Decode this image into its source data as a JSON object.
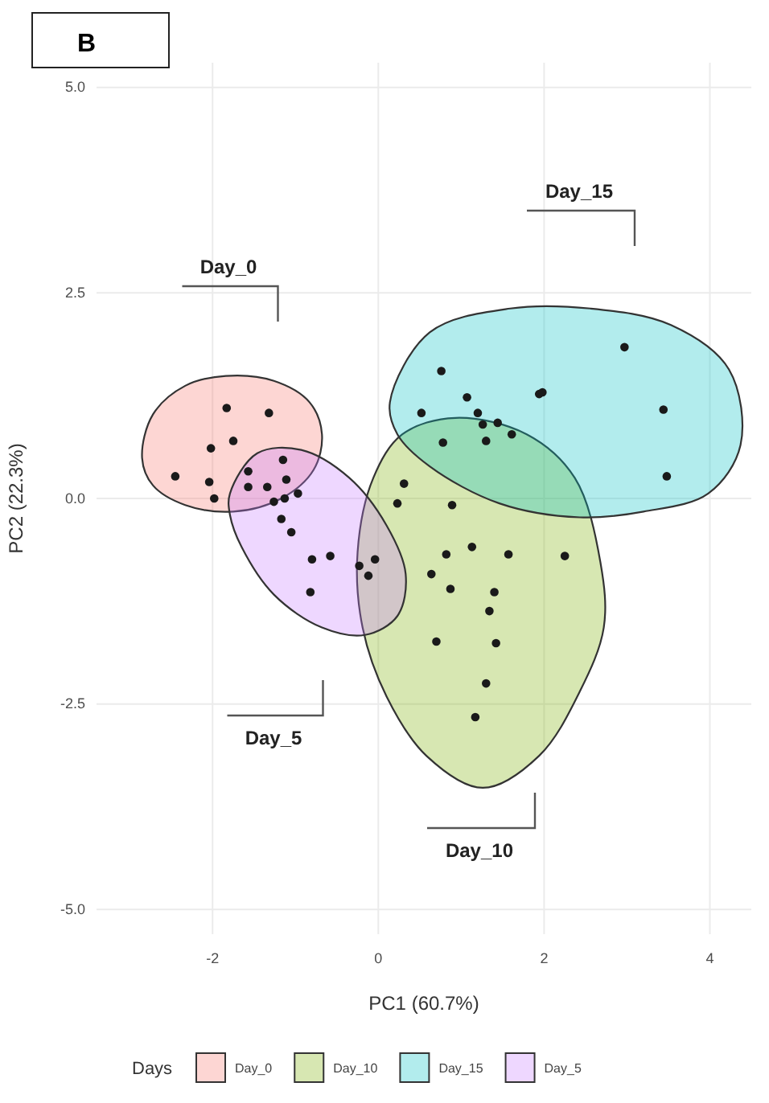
{
  "chart_data": {
    "type": "scatter",
    "title": "B",
    "xlabel": "PC1 (60.7%)",
    "ylabel": "PC2 (22.3%)",
    "legend_title": "Days",
    "xlim": [
      -3.4,
      4.5
    ],
    "ylim": [
      -5.3,
      5.3
    ],
    "xticks": [
      -2,
      0,
      2,
      4
    ],
    "yticks": [
      {
        "value": -5,
        "label": "-5.0"
      },
      {
        "value": -2.5,
        "label": "-2.5"
      },
      {
        "value": 0,
        "label": "0.0"
      },
      {
        "value": 2.5,
        "label": "2.5"
      },
      {
        "value": 5,
        "label": "5.0"
      }
    ],
    "grid": true,
    "legend": "bottom",
    "annotations": [
      "Day_0",
      "Day_10",
      "Day_15",
      "Day_5"
    ],
    "series": [
      {
        "name": "Day_0",
        "type": "area",
        "color": "#f8766d",
        "x": [
          -2.85,
          -2.72,
          -2.33,
          -1.84,
          -1.26,
          -0.83,
          -0.68,
          -0.78,
          -1.17,
          -1.75,
          -2.33,
          -2.72
        ],
        "values": [
          0.49,
          1.02,
          1.37,
          1.49,
          1.43,
          1.17,
          0.78,
          0.35,
          0.0,
          -0.16,
          -0.08,
          0.16
        ]
      },
      {
        "name": "Day_10",
        "type": "area",
        "color": "#7cae00",
        "x": [
          0.93,
          1.79,
          2.37,
          2.68,
          2.72,
          2.43,
          1.94,
          1.26,
          0.58,
          0.1,
          -0.19,
          -0.25,
          -0.06,
          0.29
        ],
        "values": [
          0.98,
          0.78,
          0.25,
          -0.78,
          -1.57,
          -2.35,
          -3.13,
          -3.52,
          -3.13,
          -2.41,
          -1.57,
          -0.65,
          0.25,
          0.78
        ]
      },
      {
        "name": "Day_15",
        "type": "area",
        "color": "#00bfc4",
        "x": [
          0.14,
          0.62,
          1.59,
          2.56,
          3.53,
          4.23,
          4.37,
          3.98,
          3.2,
          2.43,
          1.46,
          0.62,
          0.23
        ],
        "values": [
          1.17,
          2.02,
          2.31,
          2.31,
          2.11,
          1.57,
          0.65,
          0.06,
          -0.16,
          -0.23,
          -0.06,
          0.39,
          0.78
        ]
      },
      {
        "name": "Day_5",
        "type": "area",
        "color": "#c77cff",
        "x": [
          -1.79,
          -1.46,
          -0.93,
          -0.35,
          0.1,
          0.33,
          0.23,
          -0.16,
          -0.68,
          -1.26,
          -1.65,
          -1.79
        ],
        "values": [
          0.06,
          0.55,
          0.59,
          0.25,
          -0.33,
          -0.92,
          -1.43,
          -1.66,
          -1.57,
          -1.17,
          -0.59,
          -0.2
        ]
      },
      {
        "type": "scatter",
        "marker": "circle",
        "color": "#1a1a1a",
        "x": [
          -1.83,
          -1.32,
          -2.02,
          -1.75,
          -2.45,
          -2.04,
          -1.98,
          -1.57,
          -1.34
        ],
        "values": [
          1.1,
          1.04,
          0.61,
          0.7,
          0.27,
          0.2,
          0.0,
          0.33,
          0.14
        ]
      },
      {
        "type": "scatter",
        "marker": "circle",
        "color": "#1a1a1a",
        "x": [
          0.78,
          1.3,
          0.31,
          0.23,
          0.89,
          1.13,
          0.82,
          1.57,
          2.25,
          0.64,
          0.87,
          1.4,
          1.34,
          0.7,
          1.42,
          1.3,
          1.17
        ],
        "values": [
          0.68,
          0.7,
          0.18,
          -0.06,
          -0.08,
          -0.59,
          -0.68,
          -0.68,
          -0.7,
          -0.92,
          -1.1,
          -1.14,
          -1.37,
          -1.74,
          -1.76,
          -2.25,
          -2.66
        ]
      },
      {
        "type": "scatter",
        "marker": "circle",
        "color": "#1a1a1a",
        "x": [
          2.97,
          0.76,
          1.94,
          1.98,
          1.07,
          0.52,
          1.2,
          1.26,
          1.44,
          1.61,
          3.44,
          3.48
        ],
        "values": [
          1.84,
          1.55,
          1.27,
          1.29,
          1.23,
          1.04,
          1.04,
          0.9,
          0.92,
          0.78,
          1.08,
          0.27
        ]
      },
      {
        "type": "scatter",
        "marker": "circle",
        "color": "#1a1a1a",
        "x": [
          -1.15,
          -1.11,
          -1.57,
          -1.26,
          -1.13,
          -0.97,
          -1.17,
          -1.05,
          -0.8,
          -0.58,
          -0.82,
          -0.23,
          -0.04,
          -0.12
        ],
        "values": [
          0.47,
          0.23,
          0.14,
          -0.04,
          0.0,
          0.06,
          -0.25,
          -0.41,
          -0.74,
          -0.7,
          -1.14,
          -0.82,
          -0.74,
          -0.94
        ]
      }
    ]
  }
}
